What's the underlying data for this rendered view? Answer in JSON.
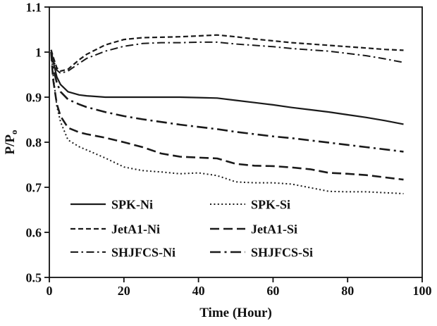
{
  "figure": {
    "kind": "line-chart",
    "background": "#ffffff",
    "ink_color": "#111111"
  },
  "chart_data": {
    "type": "line",
    "title": "",
    "xlabel": "Time (Hour)",
    "ylabel": "P/P",
    "ylabel_sub": "o",
    "xlim": [
      0,
      100
    ],
    "ylim": [
      0.5,
      1.1
    ],
    "xticks": [
      {
        "v": 0,
        "label": "0"
      },
      {
        "v": 20,
        "label": "20"
      },
      {
        "v": 40,
        "label": "40"
      },
      {
        "v": 60,
        "label": "60"
      },
      {
        "v": 80,
        "label": "80"
      },
      {
        "v": 100,
        "label": "100"
      }
    ],
    "yticks": [
      {
        "v": 0.5,
        "label": "0.5"
      },
      {
        "v": 0.6,
        "label": "0.6"
      },
      {
        "v": 0.7,
        "label": "0.7"
      },
      {
        "v": 0.8,
        "label": "0.8"
      },
      {
        "v": 0.9,
        "label": "0.9"
      },
      {
        "v": 1.0,
        "label": "1"
      },
      {
        "v": 1.1,
        "label": "1.1"
      }
    ],
    "grid": false,
    "line_color": "#1a1a1a",
    "x": [
      0.5,
      1,
      2,
      3,
      5,
      8,
      10,
      15,
      20,
      25,
      30,
      35,
      40,
      45,
      50,
      55,
      60,
      65,
      70,
      75,
      80,
      85,
      90,
      95
    ],
    "series": [
      {
        "name": "SPK-Ni",
        "style": "solid",
        "width": 2.2,
        "values": [
          1.005,
          0.98,
          0.945,
          0.928,
          0.912,
          0.905,
          0.903,
          0.9,
          0.9,
          0.9,
          0.9,
          0.9,
          0.899,
          0.898,
          0.893,
          0.888,
          0.883,
          0.877,
          0.872,
          0.867,
          0.861,
          0.855,
          0.848,
          0.84
        ]
      },
      {
        "name": "SPK-Si",
        "style": "dot",
        "width": 2.0,
        "values": [
          1.0,
          0.95,
          0.88,
          0.845,
          0.805,
          0.79,
          0.783,
          0.765,
          0.745,
          0.737,
          0.734,
          0.73,
          0.732,
          0.726,
          0.712,
          0.71,
          0.71,
          0.707,
          0.699,
          0.691,
          0.69,
          0.69,
          0.688,
          0.686
        ]
      },
      {
        "name": "JetA1-Ni",
        "style": "dash",
        "width": 2.2,
        "values": [
          1.005,
          0.99,
          0.965,
          0.958,
          0.962,
          0.983,
          0.995,
          1.016,
          1.028,
          1.032,
          1.033,
          1.034,
          1.036,
          1.038,
          1.034,
          1.029,
          1.025,
          1.021,
          1.018,
          1.015,
          1.012,
          1.009,
          1.006,
          1.004
        ]
      },
      {
        "name": "JetA1-Si",
        "style": "longdash",
        "width": 2.6,
        "values": [
          1.0,
          0.94,
          0.885,
          0.858,
          0.832,
          0.822,
          0.818,
          0.81,
          0.8,
          0.789,
          0.775,
          0.768,
          0.766,
          0.764,
          0.752,
          0.748,
          0.747,
          0.744,
          0.74,
          0.732,
          0.73,
          0.727,
          0.722,
          0.717
        ]
      },
      {
        "name": "SHJFCS-Ni",
        "style": "dashdot",
        "width": 2.0,
        "values": [
          1.0,
          0.985,
          0.96,
          0.953,
          0.958,
          0.975,
          0.986,
          1.002,
          1.013,
          1.019,
          1.021,
          1.021,
          1.022,
          1.022,
          1.018,
          1.015,
          1.012,
          1.008,
          1.005,
          1.002,
          0.997,
          0.992,
          0.985,
          0.977
        ]
      },
      {
        "name": "SHJFCS-Si",
        "style": "dashdot-bold",
        "width": 2.6,
        "values": [
          1.0,
          0.965,
          0.932,
          0.912,
          0.895,
          0.884,
          0.878,
          0.867,
          0.858,
          0.851,
          0.845,
          0.839,
          0.834,
          0.829,
          0.823,
          0.818,
          0.813,
          0.809,
          0.804,
          0.799,
          0.794,
          0.789,
          0.784,
          0.779
        ]
      }
    ],
    "legend": {
      "position": "inside-bottom-left",
      "columns": 2,
      "entries": [
        "SPK-Ni",
        "SPK-Si",
        "JetA1-Ni",
        "JetA1-Si",
        "SHJFCS-Ni",
        "SHJFCS-Si"
      ]
    }
  }
}
